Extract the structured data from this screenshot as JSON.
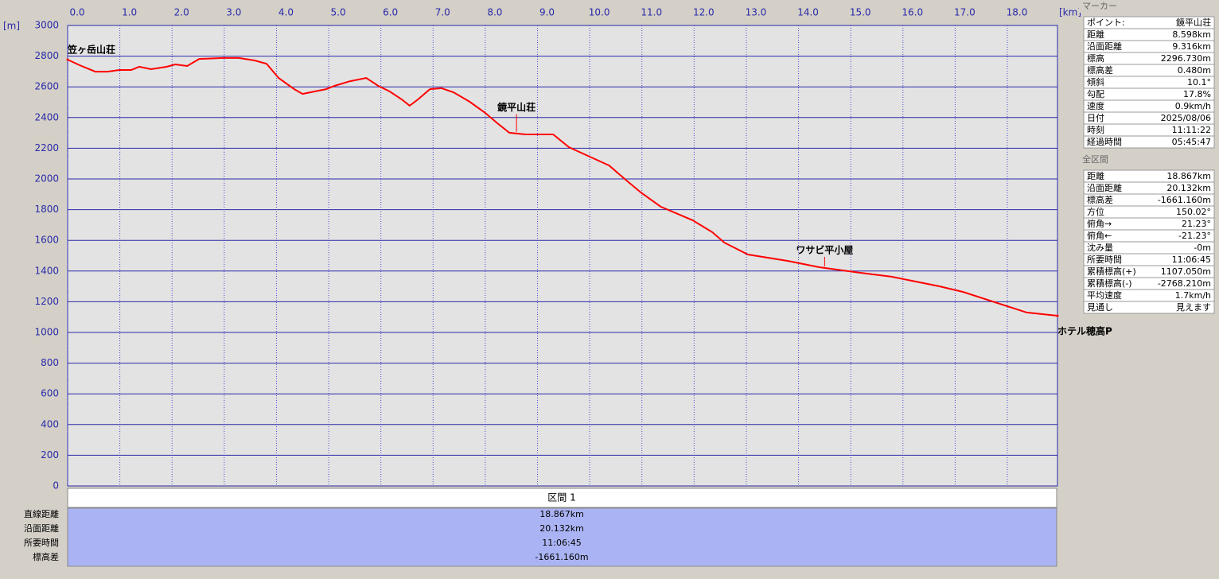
{
  "chart_data": {
    "type": "line",
    "x_unit": "[km]",
    "y_unit": "[m]",
    "x": [
      0,
      0.23,
      0.53,
      0.76,
      0.99,
      1.22,
      1.37,
      1.6,
      1.9,
      2.06,
      2.29,
      2.52,
      2.97,
      3.28,
      3.58,
      3.81,
      4.04,
      4.34,
      4.5,
      4.73,
      4.95,
      5.11,
      5.41,
      5.72,
      5.95,
      6.17,
      6.4,
      6.55,
      6.71,
      6.94,
      7.16,
      7.39,
      7.7,
      8.0,
      8.23,
      8.46,
      8.77,
      9.3,
      9.6,
      10.0,
      10.37,
      10.67,
      10.98,
      11.36,
      11.97,
      12.35,
      12.58,
      13.03,
      13.8,
      14.4,
      15.17,
      15.78,
      16.69,
      17.15,
      17.76,
      18.37,
      18.96
    ],
    "series": [
      {
        "color": "#ff0000",
        "values": [
          2777,
          2741,
          2699,
          2699,
          2710,
          2710,
          2731,
          2715,
          2731,
          2746,
          2736,
          2782,
          2788,
          2788,
          2772,
          2751,
          2658,
          2585,
          2554,
          2570,
          2585,
          2606,
          2637,
          2658,
          2606,
          2570,
          2518,
          2477,
          2518,
          2585,
          2591,
          2565,
          2503,
          2430,
          2363,
          2301,
          2290,
          2290,
          2207,
          2145,
          2088,
          2000,
          1912,
          1819,
          1731,
          1653,
          1585,
          1508,
          1466,
          1425,
          1389,
          1363,
          1301,
          1264,
          1197,
          1130,
          1109
        ]
      }
    ],
    "xlim": [
      0,
      18.96
    ],
    "ylim": [
      0,
      3000
    ],
    "xticks": [
      {
        "value": 0,
        "label": "0.0"
      },
      {
        "value": 1,
        "label": "1.0"
      },
      {
        "value": 2,
        "label": "2.0"
      },
      {
        "value": 3,
        "label": "3.0"
      },
      {
        "value": 4,
        "label": "4.0"
      },
      {
        "value": 5,
        "label": "5.0"
      },
      {
        "value": 6,
        "label": "6.0"
      },
      {
        "value": 7,
        "label": "7.0"
      },
      {
        "value": 8,
        "label": "8.0"
      },
      {
        "value": 9,
        "label": "9.0"
      },
      {
        "value": 10,
        "label": "10.0"
      },
      {
        "value": 11,
        "label": "11.0"
      },
      {
        "value": 12,
        "label": "12.0"
      },
      {
        "value": 13,
        "label": "13.0"
      },
      {
        "value": 14,
        "label": "14.0"
      },
      {
        "value": 15,
        "label": "15.0"
      },
      {
        "value": 16,
        "label": "16.0"
      },
      {
        "value": 17,
        "label": "17.0"
      },
      {
        "value": 18,
        "label": "18.0"
      }
    ],
    "yticks": [
      0,
      200,
      400,
      600,
      800,
      1000,
      1200,
      1400,
      1600,
      1800,
      2000,
      2200,
      2400,
      2600,
      2800,
      3000
    ],
    "grid": true,
    "annotations": [
      {
        "text": "笠ヶ岳山荘",
        "x": 0,
        "y": 2777
      },
      {
        "text": "鏡平山荘",
        "x": 8.598,
        "y": 2296.73
      },
      {
        "text": "ワサビ平小屋",
        "x": 14.5,
        "y": 1420
      },
      {
        "text": "ホテル穂高P",
        "x": 18.96,
        "y": 1109
      }
    ]
  },
  "marker_panel": {
    "title": "マーカー",
    "rows": [
      [
        "ポイント:",
        "鏡平山荘"
      ],
      [
        "距離",
        "8.598km"
      ],
      [
        "沿面距離",
        "9.316km"
      ],
      [
        "標高",
        "2296.730m"
      ],
      [
        "標高差",
        "0.480m"
      ],
      [
        "傾斜",
        "10.1°"
      ],
      [
        "勾配",
        "17.8%"
      ],
      [
        "速度",
        "0.9km/h"
      ],
      [
        "日付",
        "2025/08/06"
      ],
      [
        "時刻",
        "11:11:22"
      ],
      [
        "経過時間",
        "05:45:47"
      ]
    ]
  },
  "section_panel": {
    "title": "全区間",
    "rows": [
      [
        "距離",
        "18.867km"
      ],
      [
        "沿面距離",
        "20.132km"
      ],
      [
        "標高差",
        "-1661.160m"
      ],
      [
        "方位",
        "150.02°"
      ],
      [
        "俯角→",
        "21.23°"
      ],
      [
        "俯角←",
        "-21.23°"
      ],
      [
        "沈み量",
        "-0m"
      ],
      [
        "所要時間",
        "11:06:45"
      ],
      [
        "累積標高(+)",
        "1107.050m"
      ],
      [
        "累積標高(-)",
        "-2768.210m"
      ],
      [
        "平均速度",
        "1.7km/h"
      ],
      [
        "見通し",
        "見えます"
      ]
    ]
  },
  "summary": {
    "header": "区間 1",
    "rows": [
      [
        "直線距離",
        "18.867km"
      ],
      [
        "沿面距離",
        "20.132km"
      ],
      [
        "所要時間",
        "11:06:45"
      ],
      [
        "標高差",
        "-1661.160m"
      ]
    ]
  }
}
